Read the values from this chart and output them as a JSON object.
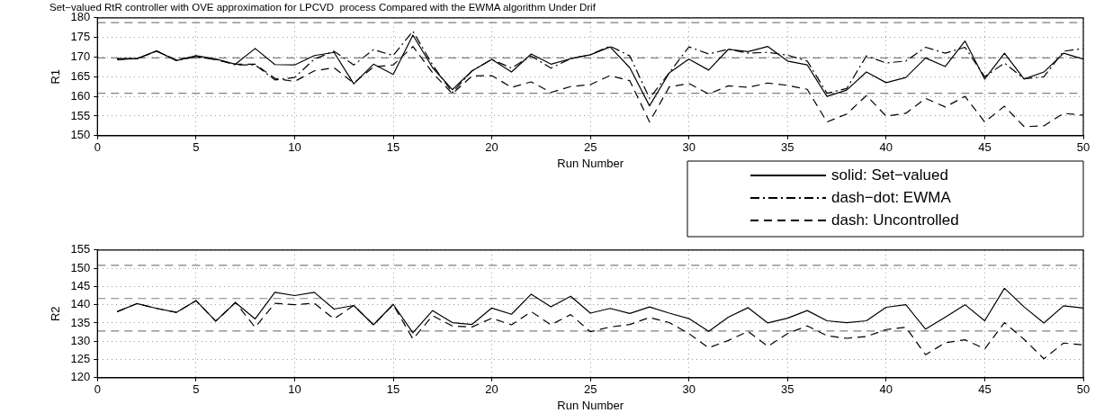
{
  "chart_data": [
    {
      "type": "line",
      "title": "Set−valued RtR controller with OVE approximation for LPCVD  process Compared with the EWMA algorithm Under Drif",
      "xlabel": "Run Number",
      "ylabel": "R1",
      "xlim": [
        0,
        50
      ],
      "xticks": [
        0,
        5,
        10,
        15,
        20,
        25,
        30,
        35,
        40,
        45,
        50
      ],
      "ylim": [
        150,
        180
      ],
      "yticks": [
        150,
        155,
        160,
        165,
        170,
        175,
        180
      ],
      "grid": true,
      "marker": "none",
      "legend": "bottom right",
      "x": [
        1,
        2,
        3,
        4,
        5,
        6,
        7,
        8,
        9,
        10,
        11,
        12,
        13,
        14,
        15,
        16,
        17,
        18,
        19,
        20,
        21,
        22,
        23,
        24,
        25,
        26,
        27,
        28,
        29,
        30,
        31,
        32,
        33,
        34,
        35,
        36,
        37,
        38,
        39,
        40,
        41,
        42,
        43,
        44,
        45,
        46,
        47,
        48,
        49,
        50
      ],
      "series": [
        {
          "name": "solid: Set−valued",
          "color": "#000000",
          "line_style": "solid",
          "values": [
            169.4,
            169.6,
            171.6,
            169.1,
            170.4,
            169.5,
            168.2,
            172.2,
            168.1,
            168,
            170.4,
            171.2,
            163.2,
            168.2,
            165.6,
            175.6,
            167.3,
            161.7,
            166.5,
            169.4,
            166.2,
            170.8,
            168.2,
            169.6,
            170.6,
            172.6,
            167.3,
            157.6,
            166,
            169.5,
            166.7,
            172,
            171.4,
            172.7,
            169,
            168,
            160,
            161.6,
            166.2,
            163.5,
            164.8,
            169.8,
            167.6,
            174.1,
            164.4,
            171,
            164.4,
            166.2,
            171,
            169.5
          ]
        },
        {
          "name": "dash−dot: EWMA",
          "color": "#000000",
          "line_style": "dashdot",
          "values": [
            169.6,
            169.6,
            171.5,
            169.3,
            170,
            169.5,
            168,
            168,
            164.2,
            164.8,
            169.5,
            171.5,
            168,
            171.9,
            170.4,
            176.6,
            168,
            161,
            166.5,
            169.4,
            167.2,
            170.3,
            167.2,
            169.6,
            170.6,
            172.8,
            170.3,
            159.5,
            166,
            172.6,
            170.8,
            172,
            171,
            171.2,
            170.5,
            169,
            160.8,
            162,
            170.3,
            168.5,
            169,
            172.5,
            171,
            172.5,
            165,
            168.5,
            164.5,
            165,
            171.5,
            172.2
          ]
        },
        {
          "name": "dash: Uncontrolled",
          "color": "#000000",
          "line_style": "dashed",
          "values": [
            169.4,
            169.6,
            171.5,
            169.2,
            170.2,
            169.3,
            168.2,
            168.2,
            164.6,
            163.8,
            166.5,
            167.3,
            163.4,
            167.5,
            168,
            172.7,
            166,
            160.7,
            165.2,
            165.3,
            162.3,
            163.7,
            161,
            162.5,
            163,
            165.3,
            164,
            153.5,
            162.4,
            163.3,
            160.6,
            162.7,
            162.3,
            163.4,
            162.8,
            161.8,
            153.5,
            155.5,
            160.2,
            155,
            155.7,
            159.5,
            157.3,
            160,
            153.5,
            157.5,
            152.3,
            152.5,
            155.7,
            155.2
          ]
        }
      ],
      "ref_lines": [
        {
          "axis": "y",
          "value": 178.8,
          "color": "#808080",
          "line_style": "dashed"
        },
        {
          "axis": "y",
          "value": 169.8,
          "color": "#808080",
          "line_style": "dashed"
        },
        {
          "axis": "y",
          "value": 160.8,
          "color": "#808080",
          "line_style": "dashed"
        }
      ]
    },
    {
      "type": "line",
      "xlabel": "Run Number",
      "ylabel": "R2",
      "xlim": [
        0,
        50
      ],
      "xticks": [
        0,
        5,
        10,
        15,
        20,
        25,
        30,
        35,
        40,
        45,
        50
      ],
      "ylim": [
        120,
        155
      ],
      "yticks": [
        120,
        125,
        130,
        135,
        140,
        145,
        150,
        155
      ],
      "grid": true,
      "marker": "none",
      "x": [
        1,
        2,
        3,
        4,
        5,
        6,
        7,
        8,
        9,
        10,
        11,
        12,
        13,
        14,
        15,
        16,
        17,
        18,
        19,
        20,
        21,
        22,
        23,
        24,
        25,
        26,
        27,
        28,
        29,
        30,
        31,
        32,
        33,
        34,
        35,
        36,
        37,
        38,
        39,
        40,
        41,
        42,
        43,
        44,
        45,
        46,
        47,
        48,
        49,
        50
      ],
      "series": [
        {
          "color": "#000000",
          "line_style": "solid",
          "values": [
            138.1,
            140.3,
            139,
            137.9,
            141.1,
            135.5,
            140.6,
            136.1,
            143.4,
            142.5,
            143.4,
            138.8,
            139.8,
            134.5,
            140.1,
            132.3,
            138.4,
            135.1,
            134.6,
            139.1,
            137.4,
            142.9,
            139.4,
            142.3,
            137.7,
            139,
            137.6,
            139.4,
            137.7,
            136.2,
            132.7,
            136.6,
            139.2,
            135,
            136.3,
            138.4,
            135.6,
            135.1,
            135.6,
            139.3,
            140,
            133.3,
            136.6,
            140,
            135.6,
            144.5,
            139.4,
            135,
            139.7,
            139.1
          ]
        },
        {
          "color": "#000000",
          "line_style": "dashed",
          "values": [
            138.1,
            140.3,
            139,
            137.9,
            141.1,
            135.5,
            140.6,
            133.8,
            140.4,
            140,
            140.4,
            136.1,
            139.8,
            134.5,
            140,
            130.6,
            137,
            134.2,
            133.9,
            136.3,
            134.5,
            138.1,
            134.5,
            137.3,
            132.6,
            133.9,
            134.6,
            136.5,
            135.1,
            132.1,
            128.2,
            130.2,
            132.7,
            128.6,
            132.1,
            134.2,
            131.5,
            130.8,
            131.3,
            133.2,
            133.8,
            126.3,
            129.6,
            130.4,
            127.9,
            135.1,
            130.5,
            125.2,
            129.5,
            129
          ]
        }
      ],
      "ref_lines": [
        {
          "axis": "y",
          "value": 150.8,
          "color": "#808080",
          "line_style": "dashed"
        },
        {
          "axis": "y",
          "value": 141.7,
          "color": "#808080",
          "line_style": "dashed"
        },
        {
          "axis": "y",
          "value": 132.8,
          "color": "#808080",
          "line_style": "dashed"
        }
      ]
    }
  ]
}
